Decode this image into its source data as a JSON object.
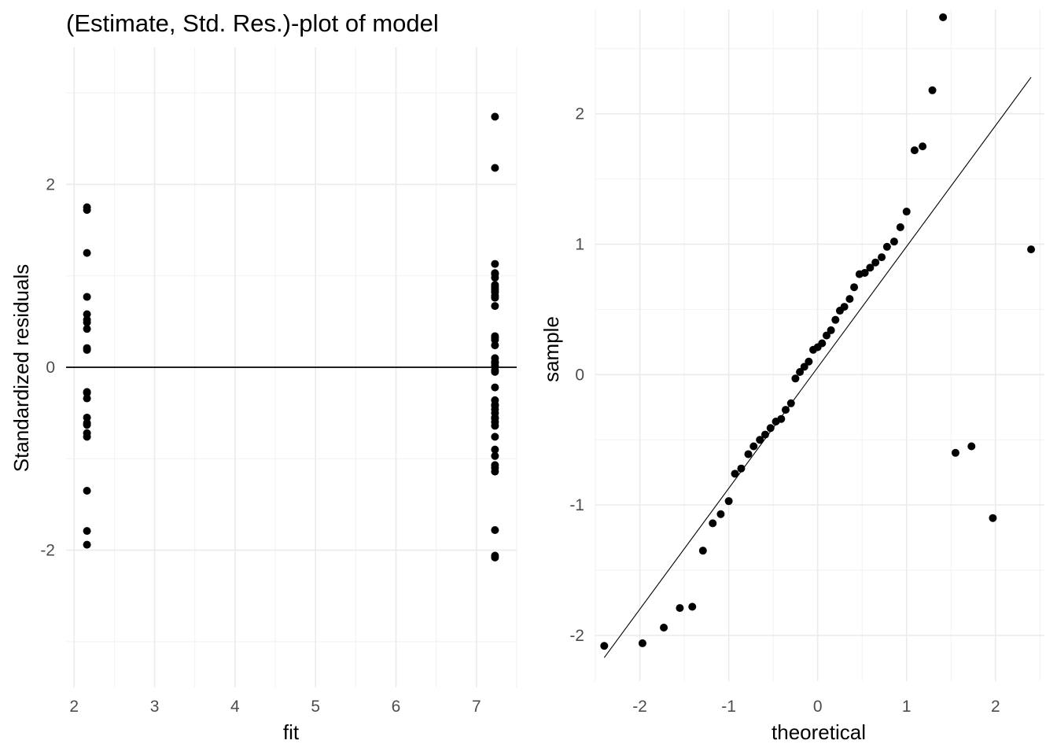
{
  "colors": {
    "point": "#000000",
    "grid_major": "#ebebeb",
    "grid_minor": "#f2f2f2",
    "text": "#000000",
    "tick_text": "#4d4d4d",
    "background": "#ffffff"
  },
  "chart_data": [
    {
      "type": "scatter",
      "title": "(Estimate, Std. Res.)-plot of model",
      "xlabel": "fit",
      "ylabel": "Standardized residuals",
      "xlim": [
        1.9,
        7.5
      ],
      "ylim": [
        -3.5,
        3.5
      ],
      "xticks": [
        2,
        3,
        4,
        5,
        6,
        7
      ],
      "yticks": [
        -2,
        0,
        2
      ],
      "xtick_labels": [
        "2",
        "3",
        "4",
        "5",
        "6",
        "7"
      ],
      "ytick_labels": [
        "-2",
        "0",
        "2"
      ],
      "grid": true,
      "reference_line": {
        "y": 0
      },
      "x": [
        2.16,
        2.16,
        2.16,
        2.16,
        2.16,
        2.16,
        2.16,
        2.16,
        2.16,
        2.16,
        2.16,
        2.16,
        2.16,
        2.16,
        2.16,
        2.16,
        2.16,
        2.16,
        2.16,
        2.16,
        2.16,
        7.23,
        7.23,
        7.23,
        7.23,
        7.23,
        7.23,
        7.23,
        7.23,
        7.23,
        7.23,
        7.23,
        7.23,
        7.23,
        7.23,
        7.23,
        7.23,
        7.23,
        7.23,
        7.23,
        7.23,
        7.23,
        7.23,
        7.23,
        7.23,
        7.23,
        7.23,
        7.23,
        7.23,
        7.23,
        7.23,
        7.23,
        7.23,
        7.23,
        7.23,
        7.23,
        7.23,
        7.23,
        7.23,
        7.23,
        7.23,
        7.23,
        7.23,
        7.23
      ],
      "y": [
        1.75,
        1.72,
        1.25,
        0.77,
        0.58,
        0.52,
        0.42,
        0.21,
        0.19,
        -0.27,
        -0.34,
        -0.55,
        -0.61,
        -0.72,
        -0.76,
        -1.35,
        -1.79,
        -1.94,
        0.49,
        -0.63,
        -0.28,
        2.74,
        2.18,
        1.13,
        1.02,
        0.98,
        0.9,
        0.86,
        0.82,
        0.78,
        0.67,
        0.34,
        0.3,
        0.24,
        0.1,
        0.06,
        0.02,
        -0.03,
        -0.22,
        -0.36,
        -0.41,
        -0.46,
        -0.5,
        -0.55,
        -0.6,
        -0.76,
        -0.97,
        -1.07,
        -1.14,
        -1.78,
        -2.06,
        -2.08,
        0.88,
        -0.05,
        0.05,
        -0.42,
        0.84,
        0.76,
        -0.56,
        -0.64,
        -0.9,
        -1.1,
        1.03,
        0.32
      ]
    },
    {
      "type": "scatter",
      "title": "",
      "xlabel": "theoretical",
      "ylabel": "sample",
      "xlim": [
        -2.5,
        2.55
      ],
      "ylim": [
        -2.35,
        2.8
      ],
      "xticks": [
        -2,
        -1,
        0,
        1,
        2
      ],
      "yticks": [
        -2,
        -1,
        0,
        1,
        2
      ],
      "xtick_labels": [
        "-2",
        "-1",
        "0",
        "1",
        "2"
      ],
      "ytick_labels": [
        "-2",
        "-1",
        "0",
        "1",
        "2"
      ],
      "grid": true,
      "reference_line": {
        "x1": -2.4,
        "y1": -2.17,
        "x2": 2.4,
        "y2": 2.28
      },
      "x": [
        -2.4,
        -1.97,
        -1.73,
        -1.55,
        -1.41,
        -1.29,
        -1.18,
        -1.09,
        -1.0,
        -0.93,
        -0.86,
        -0.78,
        -0.72,
        -0.65,
        -0.59,
        -0.53,
        -0.47,
        -0.41,
        -0.36,
        -0.3,
        -0.25,
        -0.2,
        -0.15,
        -0.1,
        -0.05,
        0.0,
        0.05,
        0.1,
        0.15,
        0.2,
        0.25,
        0.3,
        0.36,
        0.41,
        0.47,
        0.53,
        0.59,
        0.65,
        0.72,
        0.78,
        0.86,
        0.93,
        1.0,
        1.09,
        1.18,
        1.29,
        1.41,
        1.55,
        1.73,
        1.97,
        2.4
      ],
      "y": [
        -2.08,
        -2.06,
        -1.94,
        -1.79,
        -1.78,
        -1.35,
        -1.14,
        -1.07,
        -0.97,
        -0.76,
        -0.72,
        -0.61,
        -0.55,
        -0.5,
        -0.46,
        -0.41,
        -0.36,
        -0.34,
        -0.27,
        -0.22,
        -0.03,
        0.02,
        0.06,
        0.1,
        0.19,
        0.21,
        0.24,
        0.3,
        0.34,
        0.42,
        0.49,
        0.52,
        0.58,
        0.67,
        0.77,
        0.78,
        0.82,
        0.86,
        0.9,
        0.98,
        1.02,
        1.13,
        1.25,
        1.72,
        1.75,
        2.18,
        2.74,
        -0.6,
        -0.55,
        -1.1,
        0.96
      ]
    }
  ]
}
